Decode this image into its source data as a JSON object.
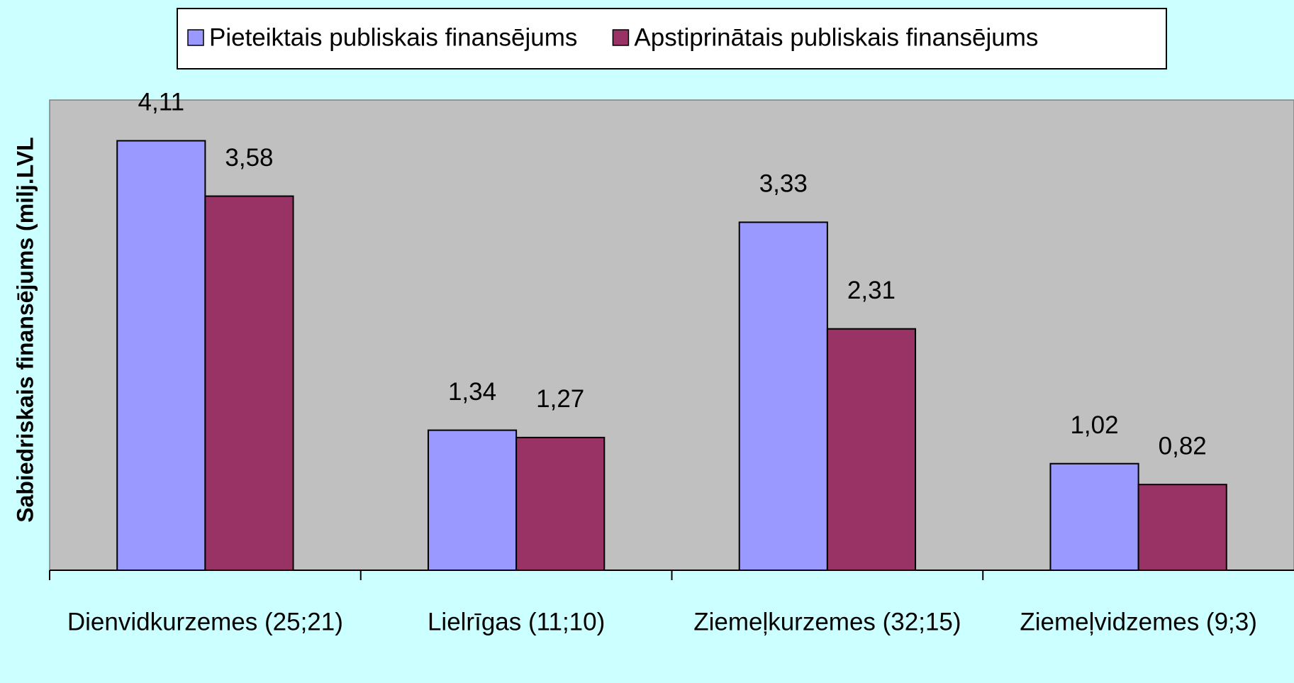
{
  "chart_data": {
    "type": "bar",
    "y_axis_label": "Sabiedriskais finansējums (milj.LVL",
    "categories": [
      "Dienvidkurzemes (25;21)",
      "Lielrīgas (11;10)",
      "Ziemeļkurzemes (32;15)",
      "Ziemeļvidzemes (9;3)"
    ],
    "series": [
      {
        "name": "Pieteiktais publiskais finansējums",
        "color": "#9999ff",
        "values": [
          4.11,
          1.34,
          3.33,
          1.02
        ],
        "value_labels": [
          "4,11",
          "1,34",
          "3,33",
          "1,02"
        ]
      },
      {
        "name": "Apstiprinātais publiskais finansējums",
        "color": "#993366",
        "values": [
          3.58,
          1.27,
          2.31,
          0.82
        ],
        "value_labels": [
          "3,58",
          "1,27",
          "2,31",
          "0,82"
        ]
      }
    ],
    "ylim": [
      0,
      4.5
    ],
    "legend": "top"
  }
}
